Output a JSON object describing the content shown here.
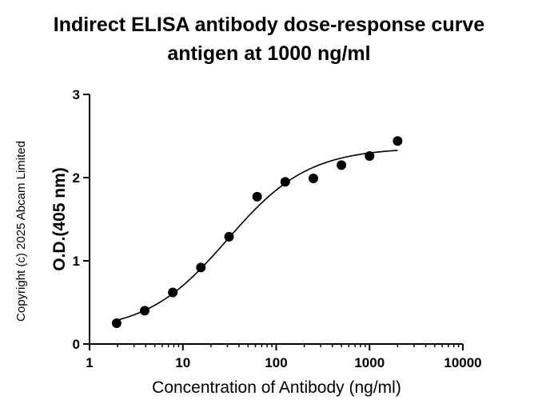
{
  "chart_data": {
    "type": "scatter",
    "title": "Indirect ELISA antibody dose-response curve",
    "subtitle": "antigen at 1000 ng/ml",
    "xlabel": "Concentration of Antibody (ng/ml)",
    "ylabel": "O.D.(405 nm)",
    "xscale": "log",
    "xlim": [
      1,
      10000
    ],
    "ylim": [
      0,
      3
    ],
    "xticks": [
      "1",
      "10",
      "100",
      "1000",
      "10000"
    ],
    "yticks": [
      "0",
      "1",
      "2",
      "3"
    ],
    "grid": false,
    "series": [
      {
        "x": [
          1.95,
          3.9,
          7.8,
          15.6,
          31.25,
          62.5,
          125,
          250,
          500,
          1000,
          2000
        ],
        "y": [
          0.25,
          0.4,
          0.62,
          0.92,
          1.29,
          1.77,
          1.95,
          1.99,
          2.15,
          2.26,
          2.44
        ]
      }
    ],
    "fit_curve": {
      "type": "4PL",
      "bottom": 0.15,
      "top": 2.36,
      "ec50": 30,
      "hill": 1.0,
      "x_range": [
        2,
        2000
      ]
    },
    "copyright": "Copyright (c) 2025 Abcam Limited",
    "colors": {
      "points": "#000000",
      "curve": "#000000",
      "axes": "#000000"
    }
  }
}
